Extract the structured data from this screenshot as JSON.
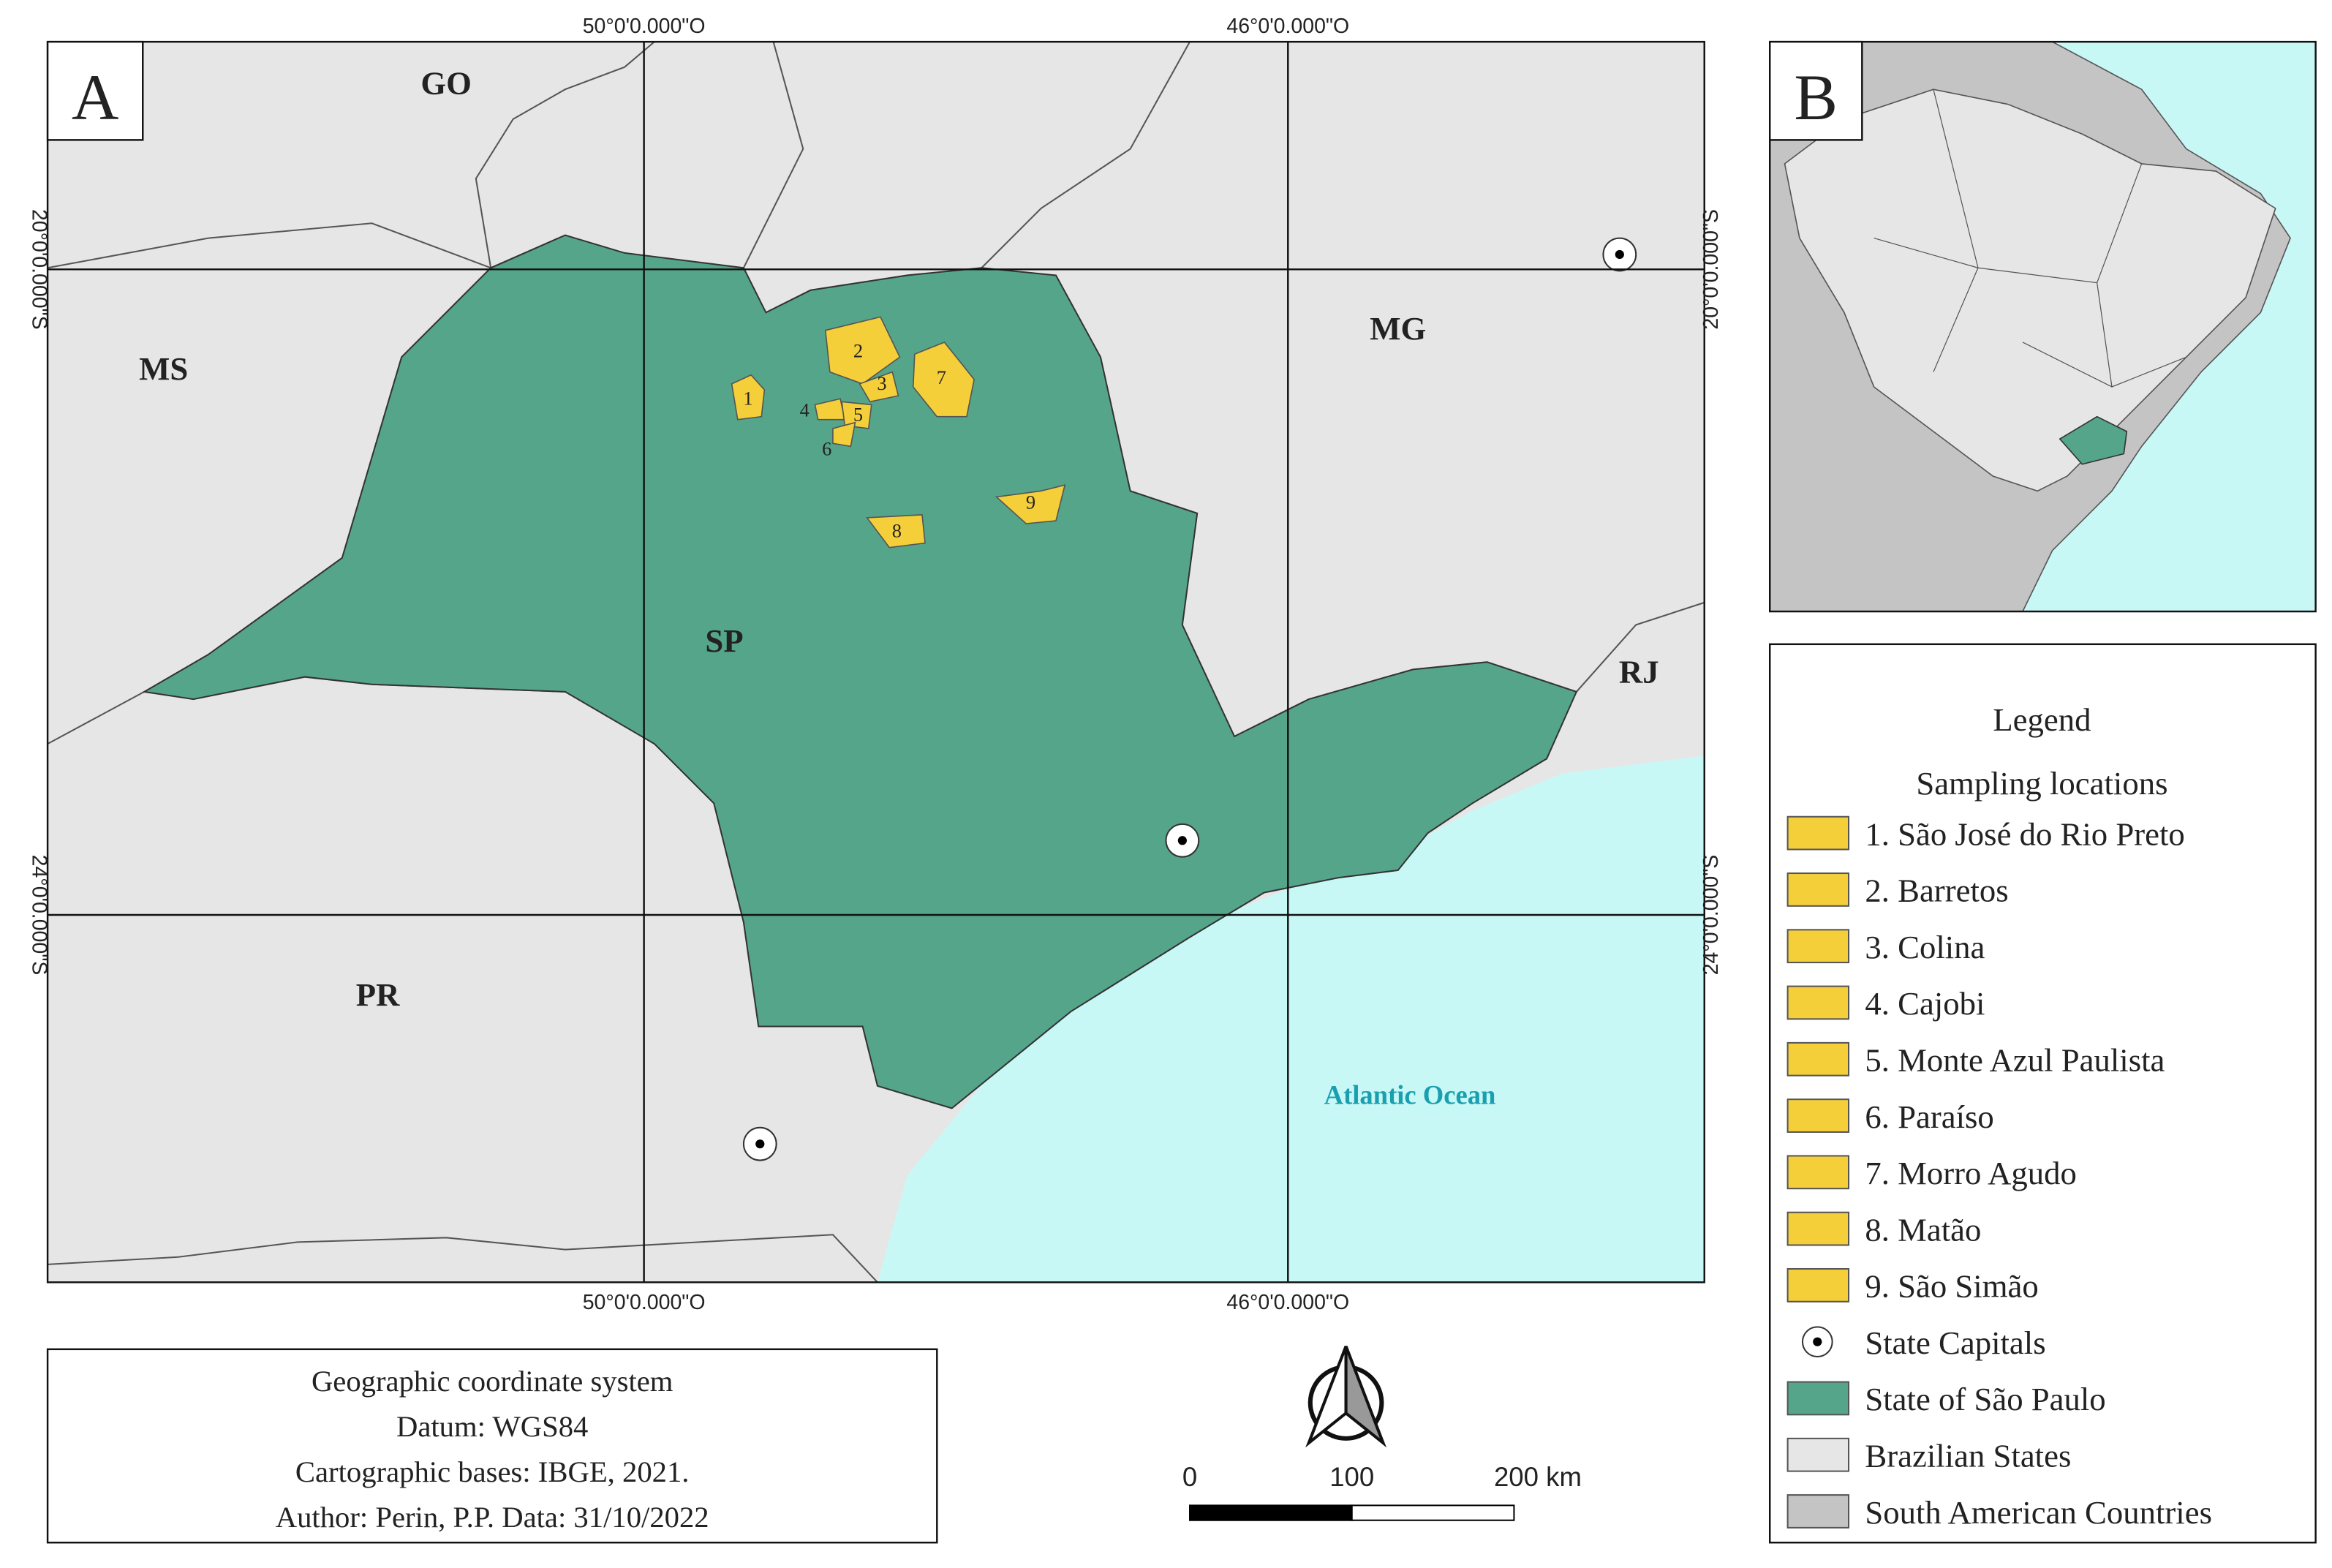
{
  "panel_a": {
    "label": "A",
    "grid": {
      "lon": [
        "50°0'0.000\"O",
        "46°0'0.000\"O"
      ],
      "lat": [
        "20°0'0.000\"S",
        "24°0'0.000\"S"
      ]
    },
    "states": {
      "go": "GO",
      "ms": "MS",
      "mg": "MG",
      "sp": "SP",
      "rj": "RJ",
      "pr": "PR"
    },
    "ocean": "Atlantic Ocean",
    "sites": [
      "1",
      "2",
      "3",
      "4",
      "5",
      "6",
      "7",
      "8",
      "9"
    ]
  },
  "panel_b": {
    "label": "B"
  },
  "legend": {
    "title": "Legend",
    "subtitle": "Sampling locations",
    "items": [
      {
        "label": "1. São José do Rio Preto",
        "color": "#f5cf3a"
      },
      {
        "label": "2. Barretos",
        "color": "#f5cf3a"
      },
      {
        "label": "3. Colina",
        "color": "#f5cf3a"
      },
      {
        "label": "4. Cajobi",
        "color": "#f5cf3a"
      },
      {
        "label": "5. Monte Azul Paulista",
        "color": "#f5cf3a"
      },
      {
        "label": "6. Paraíso",
        "color": "#f5cf3a"
      },
      {
        "label": "7. Morro Agudo",
        "color": "#f5cf3a"
      },
      {
        "label": "8. Matão",
        "color": "#f5cf3a"
      },
      {
        "label": "9. São Simão",
        "color": "#f5cf3a"
      },
      {
        "label": "State Capitals"
      },
      {
        "label": "State of São Paulo",
        "color": "#55a58a"
      },
      {
        "label": "Brazilian States",
        "color": "#e6e6e6"
      },
      {
        "label": "South American Countries",
        "color": "#c4c4c4"
      }
    ]
  },
  "info": {
    "lines": [
      "Geographic coordinate system",
      "Datum: WGS84",
      "Cartographic bases: IBGE, 2021.",
      "Author: Perin, P.P. Data: 31/10/2022"
    ]
  },
  "scale_bar": {
    "labels": [
      "0",
      "100",
      "200 km"
    ]
  }
}
